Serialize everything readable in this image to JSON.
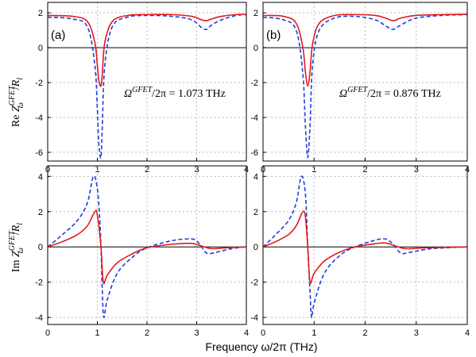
{
  "figure": {
    "xlabel": "Frequency ω/2π (THz)",
    "ylabel_top": {
      "prefix": "Re",
      "Z": "Z",
      "sup": "GFET",
      "sub": "ω",
      "slash": "/",
      "R": "R",
      "Rsub": "l"
    },
    "ylabel_bottom": {
      "prefix": "Im",
      "Z": "Z",
      "sup": "GFET",
      "sub": "ω",
      "slash": "/",
      "R": "R",
      "Rsub": "l"
    },
    "colors": {
      "solid": "#e31a1c",
      "dashed": "#1f3fd6",
      "zero_line": "#000000",
      "grid": "#bdbdbd",
      "frame": "#000000"
    }
  },
  "chart_data": [
    {
      "type": "line",
      "panel": "top-left",
      "panel_label": "(a)",
      "annotation": {
        "omega": "Ω",
        "sup": "GFET",
        "rest": "/2π = 1.073 THz"
      },
      "xlim": [
        0,
        4
      ],
      "ylim": [
        -6.5,
        2.6
      ],
      "xticks": [
        "0",
        "1",
        "2",
        "3",
        "4"
      ],
      "yticks": [
        "2",
        "0",
        "-2",
        "-4",
        "-6"
      ],
      "grid": true,
      "series": [
        {
          "style": "solid",
          "x": [
            0,
            0.5,
            0.8,
            0.95,
            1.0,
            1.03,
            1.073,
            1.1,
            1.15,
            1.3,
            1.6,
            2.0,
            2.5,
            2.9,
            3.1,
            3.2,
            3.3,
            3.5,
            3.8,
            4.0
          ],
          "y": [
            1.85,
            1.8,
            1.5,
            0.3,
            -1.0,
            -1.9,
            -2.2,
            -1.5,
            0.3,
            1.5,
            1.85,
            1.9,
            1.9,
            1.8,
            1.6,
            1.55,
            1.65,
            1.8,
            1.9,
            1.92
          ]
        },
        {
          "style": "dashed",
          "x": [
            0,
            0.5,
            0.8,
            0.95,
            1.0,
            1.03,
            1.073,
            1.1,
            1.15,
            1.3,
            1.6,
            2.0,
            2.5,
            2.9,
            3.1,
            3.2,
            3.3,
            3.5,
            3.8,
            4.0
          ],
          "y": [
            1.75,
            1.65,
            1.2,
            -1.0,
            -3.5,
            -5.5,
            -6.3,
            -4.5,
            -1.0,
            1.2,
            1.75,
            1.85,
            1.8,
            1.6,
            1.15,
            1.05,
            1.3,
            1.6,
            1.85,
            1.9
          ]
        }
      ]
    },
    {
      "type": "line",
      "panel": "top-right",
      "panel_label": "(b)",
      "annotation": {
        "omega": "Ω",
        "sup": "GFET",
        "rest": "/2π = 0.876 THz"
      },
      "xlim": [
        0,
        4
      ],
      "ylim": [
        -6.5,
        2.6
      ],
      "xticks": [
        "0",
        "1",
        "2",
        "3",
        "4"
      ],
      "yticks": [
        "2",
        "0",
        "-2",
        "-4",
        "-6"
      ],
      "grid": true,
      "series": [
        {
          "style": "solid",
          "x": [
            0,
            0.4,
            0.65,
            0.78,
            0.83,
            0.876,
            0.92,
            0.97,
            1.1,
            1.4,
            1.8,
            2.2,
            2.4,
            2.55,
            2.7,
            3.0,
            3.5,
            4.0
          ],
          "y": [
            1.85,
            1.8,
            1.4,
            0.0,
            -1.4,
            -2.2,
            -1.4,
            0.2,
            1.4,
            1.85,
            1.9,
            1.85,
            1.7,
            1.55,
            1.7,
            1.85,
            1.9,
            1.92
          ]
        },
        {
          "style": "dashed",
          "x": [
            0,
            0.4,
            0.65,
            0.78,
            0.83,
            0.876,
            0.92,
            0.97,
            1.1,
            1.4,
            1.8,
            2.2,
            2.4,
            2.55,
            2.7,
            3.0,
            3.5,
            4.0
          ],
          "y": [
            1.75,
            1.6,
            1.0,
            -1.5,
            -4.5,
            -6.3,
            -4.5,
            -1.0,
            1.0,
            1.7,
            1.8,
            1.6,
            1.25,
            1.05,
            1.3,
            1.7,
            1.85,
            1.9
          ]
        }
      ]
    },
    {
      "type": "line",
      "panel": "bottom-left",
      "xlim": [
        0,
        4
      ],
      "ylim": [
        -4.4,
        4.6
      ],
      "xticks": [
        "0",
        "1",
        "2",
        "3",
        "4"
      ],
      "yticks": [
        "4",
        "2",
        "0",
        "-2",
        "-4"
      ],
      "grid": true,
      "series": [
        {
          "style": "solid",
          "x": [
            0,
            0.3,
            0.6,
            0.8,
            0.95,
            1.0,
            1.073,
            1.12,
            1.2,
            1.4,
            1.7,
            2.0,
            2.5,
            2.9,
            3.1,
            3.3,
            3.6,
            4.0
          ],
          "y": [
            0.0,
            0.3,
            0.7,
            1.2,
            2.0,
            1.8,
            0.0,
            -2.0,
            -1.6,
            -0.9,
            -0.4,
            -0.05,
            0.15,
            0.2,
            0.05,
            -0.1,
            -0.05,
            0.0
          ]
        },
        {
          "style": "dashed",
          "x": [
            0,
            0.3,
            0.6,
            0.8,
            0.92,
            1.0,
            1.05,
            1.073,
            1.1,
            1.13,
            1.2,
            1.4,
            1.7,
            2.0,
            2.5,
            2.9,
            3.05,
            3.2,
            3.4,
            3.7,
            4.0
          ],
          "y": [
            0.0,
            0.7,
            1.5,
            2.5,
            4.0,
            3.3,
            1.5,
            0.0,
            -2.5,
            -4.0,
            -3.0,
            -1.5,
            -0.6,
            -0.05,
            0.35,
            0.45,
            0.2,
            -0.35,
            -0.3,
            -0.1,
            0.0
          ]
        }
      ]
    },
    {
      "type": "line",
      "panel": "bottom-right",
      "xlim": [
        0,
        4
      ],
      "ylim": [
        -4.4,
        4.6
      ],
      "xticks": [
        "0",
        "1",
        "2",
        "3",
        "4"
      ],
      "yticks": [
        "4",
        "2",
        "0",
        "-2",
        "-4"
      ],
      "grid": true,
      "series": [
        {
          "style": "solid",
          "x": [
            0,
            0.25,
            0.5,
            0.65,
            0.78,
            0.83,
            0.876,
            0.92,
            1.0,
            1.2,
            1.5,
            1.8,
            2.2,
            2.4,
            2.6,
            2.8,
            3.2,
            4.0
          ],
          "y": [
            0.0,
            0.3,
            0.7,
            1.2,
            2.0,
            1.7,
            0.0,
            -2.0,
            -1.5,
            -0.8,
            -0.3,
            0.0,
            0.18,
            0.22,
            0.05,
            -0.1,
            -0.05,
            0.0
          ]
        },
        {
          "style": "dashed",
          "x": [
            0,
            0.25,
            0.5,
            0.65,
            0.75,
            0.83,
            0.876,
            0.92,
            0.95,
            1.0,
            1.2,
            1.5,
            1.8,
            2.2,
            2.4,
            2.55,
            2.7,
            2.9,
            3.3,
            4.0
          ],
          "y": [
            0.0,
            0.7,
            1.5,
            2.5,
            4.0,
            3.0,
            0.0,
            -2.5,
            -4.0,
            -3.2,
            -1.5,
            -0.5,
            0.0,
            0.38,
            0.45,
            0.15,
            -0.35,
            -0.3,
            -0.1,
            0.0
          ]
        }
      ]
    }
  ]
}
